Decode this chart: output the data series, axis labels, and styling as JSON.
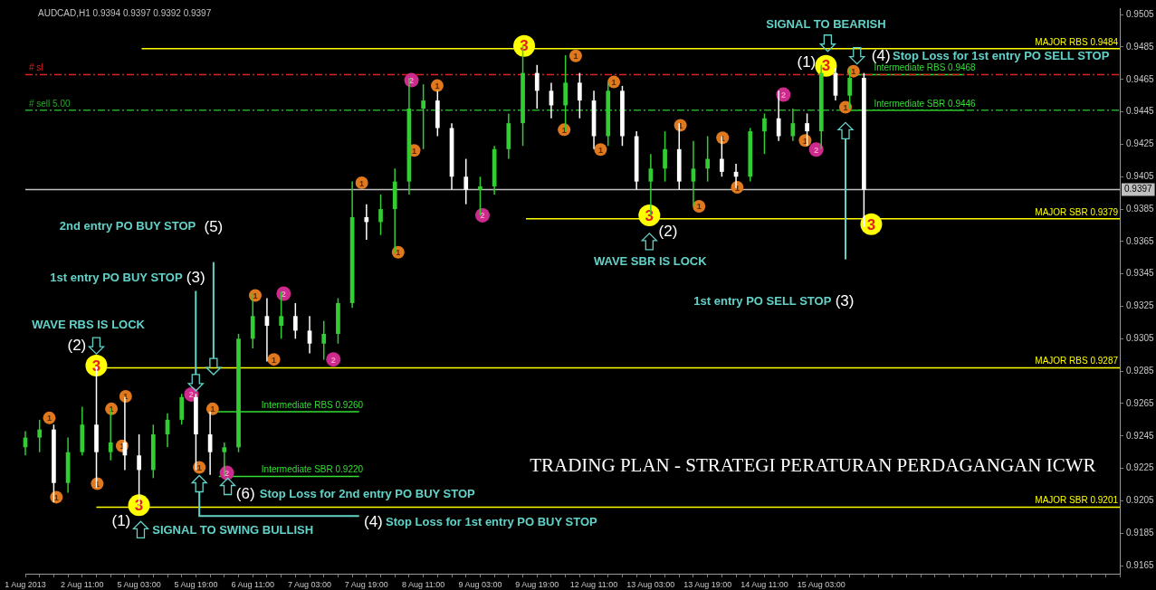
{
  "chart_data": {
    "type": "candlestick",
    "title": "AUDCAD,H1 0.9394 0.9397 0.9392 0.9397",
    "categories": [
      "1 Aug 2013",
      null,
      null,
      null,
      "2 Aug 11:00",
      null,
      null,
      null,
      "5 Aug 03:00",
      null,
      null,
      null,
      "5 Aug 19:00",
      null,
      null,
      null,
      "6 Aug 11:00",
      null,
      null,
      null,
      "7 Aug 03:00",
      null,
      null,
      null,
      "7 Aug 19:00",
      null,
      null,
      null,
      "8 Aug 11:00",
      null,
      null,
      null,
      "9 Aug 03:00",
      null,
      null,
      null,
      "9 Aug 19:00",
      null,
      null,
      null,
      "12 Aug 11:00",
      null,
      null,
      null,
      "13 Aug 03:00",
      null,
      null,
      null,
      "13 Aug 19:00",
      null,
      null,
      null,
      "14 Aug 11:00",
      null,
      null,
      null,
      "15 Aug 03:00",
      null,
      null,
      null,
      null,
      null,
      null,
      null,
      null,
      null,
      null,
      null,
      null,
      null,
      null,
      null,
      null,
      null,
      null,
      null,
      null,
      null
    ],
    "ohlc": [
      [
        0.9238,
        0.9248,
        0.9233,
        0.9244
      ],
      [
        0.9244,
        0.9255,
        0.9235,
        0.9249
      ],
      [
        0.9249,
        0.9252,
        0.9204,
        0.9216
      ],
      [
        0.9216,
        0.9244,
        0.921,
        0.9235
      ],
      [
        0.9235,
        0.9263,
        0.9233,
        0.9252
      ],
      [
        0.9252,
        0.9288,
        0.9213,
        0.9235
      ],
      [
        0.9235,
        0.9262,
        0.923,
        0.9241
      ],
      [
        0.9241,
        0.9269,
        0.9224,
        0.9233
      ],
      [
        0.9233,
        0.9246,
        0.9202,
        0.9224
      ],
      [
        0.9224,
        0.9252,
        0.9219,
        0.9246
      ],
      [
        0.9246,
        0.9259,
        0.9238,
        0.9255
      ],
      [
        0.9255,
        0.9271,
        0.9252,
        0.9269
      ],
      [
        0.9269,
        0.9271,
        0.9224,
        0.9246
      ],
      [
        0.9246,
        0.926,
        0.9221,
        0.9235
      ],
      [
        0.9235,
        0.9241,
        0.922,
        0.9238
      ],
      [
        0.9238,
        0.9308,
        0.9235,
        0.9305
      ],
      [
        0.9305,
        0.9333,
        0.9299,
        0.9319
      ],
      [
        0.9319,
        0.933,
        0.9291,
        0.9313
      ],
      [
        0.9313,
        0.9334,
        0.9305,
        0.9319
      ],
      [
        0.9319,
        0.9327,
        0.9305,
        0.931
      ],
      [
        0.931,
        0.9319,
        0.9296,
        0.9302
      ],
      [
        0.9302,
        0.9316,
        0.9292,
        0.9308
      ],
      [
        0.9308,
        0.933,
        0.9302,
        0.9327
      ],
      [
        0.9327,
        0.9402,
        0.9324,
        0.938
      ],
      [
        0.938,
        0.9388,
        0.9366,
        0.9377
      ],
      [
        0.9377,
        0.9394,
        0.9369,
        0.9385
      ],
      [
        0.9385,
        0.941,
        0.9358,
        0.9402
      ],
      [
        0.9402,
        0.9466,
        0.9394,
        0.9447
      ],
      [
        0.9447,
        0.9462,
        0.9422,
        0.9452
      ],
      [
        0.9452,
        0.9458,
        0.943,
        0.9435
      ],
      [
        0.9435,
        0.9438,
        0.9397,
        0.9405
      ],
      [
        0.9405,
        0.9416,
        0.9388,
        0.9397
      ],
      [
        0.9397,
        0.9405,
        0.9381,
        0.9399
      ],
      [
        0.9399,
        0.9424,
        0.9394,
        0.9422
      ],
      [
        0.9422,
        0.9444,
        0.9416,
        0.9438
      ],
      [
        0.9438,
        0.9486,
        0.9424,
        0.9469
      ],
      [
        0.9469,
        0.9474,
        0.9447,
        0.9458
      ],
      [
        0.9458,
        0.9463,
        0.9441,
        0.9449
      ],
      [
        0.9449,
        0.948,
        0.9433,
        0.9463
      ],
      [
        0.9463,
        0.9469,
        0.9441,
        0.9452
      ],
      [
        0.9452,
        0.9458,
        0.9422,
        0.943
      ],
      [
        0.943,
        0.9463,
        0.9424,
        0.9458
      ],
      [
        0.9458,
        0.9461,
        0.9424,
        0.943
      ],
      [
        0.943,
        0.9433,
        0.9397,
        0.9402
      ],
      [
        0.9402,
        0.9419,
        0.9381,
        0.941
      ],
      [
        0.941,
        0.9433,
        0.9402,
        0.9422
      ],
      [
        0.9422,
        0.9438,
        0.9397,
        0.9402
      ],
      [
        0.9402,
        0.9427,
        0.9387,
        0.941
      ],
      [
        0.941,
        0.943,
        0.9402,
        0.9416
      ],
      [
        0.9416,
        0.943,
        0.9405,
        0.9408
      ],
      [
        0.9408,
        0.9413,
        0.9398,
        0.9405
      ],
      [
        0.9405,
        0.9435,
        0.9402,
        0.9433
      ],
      [
        0.9433,
        0.9444,
        0.9419,
        0.9441
      ],
      [
        0.9441,
        0.9458,
        0.9427,
        0.943
      ],
      [
        0.943,
        0.9447,
        0.9427,
        0.9438
      ],
      [
        0.9438,
        0.9444,
        0.9424,
        0.9433
      ],
      [
        0.9433,
        0.9474,
        0.9422,
        0.9469
      ],
      [
        0.9469,
        0.9472,
        0.9452,
        0.9455
      ],
      [
        0.9455,
        0.9472,
        0.9447,
        0.9466
      ],
      [
        0.9466,
        0.9469,
        0.9374,
        0.9397
      ],
      null,
      null,
      null,
      null,
      null,
      null,
      null,
      null,
      null,
      null,
      null,
      null,
      null,
      null,
      null,
      null,
      null,
      null
    ],
    "colors": [
      "#32cd32",
      "#32cd32",
      "#ffffff",
      "#32cd32",
      "#32cd32",
      "#ffffff",
      "#32cd32",
      "#ffffff",
      "#ffffff",
      "#32cd32",
      "#32cd32",
      "#32cd32",
      "#ffffff",
      "#ffffff",
      "#32cd32",
      "#32cd32",
      "#32cd32",
      "#ffffff",
      "#32cd32",
      "#ffffff",
      "#ffffff",
      "#32cd32",
      "#32cd32",
      "#32cd32",
      "#ffffff",
      "#32cd32",
      "#32cd32",
      "#32cd32",
      "#32cd32",
      "#ffffff",
      "#ffffff",
      "#ffffff",
      "#32cd32",
      "#32cd32",
      "#32cd32",
      "#32cd32",
      "#ffffff",
      "#ffffff",
      "#32cd32",
      "#ffffff",
      "#ffffff",
      "#32cd32",
      "#ffffff",
      "#ffffff",
      "#32cd32",
      "#32cd32",
      "#ffffff",
      "#32cd32",
      "#32cd32",
      "#ffffff",
      "#ffffff",
      "#32cd32",
      "#32cd32",
      "#ffffff",
      "#32cd32",
      "#ffffff",
      "#32cd32",
      "#ffffff",
      "#32cd32",
      "#ffffff",
      null,
      null,
      null,
      null,
      null,
      null,
      null,
      null,
      null,
      null,
      null,
      null,
      null,
      null,
      null,
      null,
      null,
      null
    ],
    "ylim": [
      0.916,
      0.9509
    ],
    "yticks": [
      0.9165,
      0.9185,
      0.9205,
      0.9225,
      0.9245,
      0.9265,
      0.9285,
      0.9305,
      0.9325,
      0.9345,
      0.9365,
      0.9385,
      0.9405,
      0.9425,
      0.9445,
      0.9465,
      0.9485,
      0.9505
    ],
    "grid": false,
    "legend": false,
    "ref_lines": [
      {
        "axis": "y",
        "value": 0.9484,
        "label": "MAJOR RBS 0.9484",
        "color": "#ffff00",
        "line_style": "solid"
      },
      {
        "axis": "y",
        "value": 0.9379,
        "label": "MAJOR SBR 0.9379",
        "color": "#ffff00",
        "line_style": "solid"
      },
      {
        "axis": "y",
        "value": 0.9287,
        "label": "MAJOR RBS 0.9287",
        "color": "#ffff00",
        "line_style": "solid"
      },
      {
        "axis": "y",
        "value": 0.9201,
        "label": "MAJOR SBR 0.9201",
        "color": "#ffff00",
        "line_style": "solid"
      },
      {
        "axis": "y",
        "value": 0.9468,
        "label": "Intermediate RBS 0.9468",
        "color": "#33dd33",
        "line_style": "solid"
      },
      {
        "axis": "y",
        "value": 0.9446,
        "label": "Intermediate SBR 0.9446",
        "color": "#33dd33",
        "line_style": "solid"
      },
      {
        "axis": "y",
        "value": 0.926,
        "label": "Intermediate RBS 0.9260",
        "color": "#33dd33",
        "line_style": "solid"
      },
      {
        "axis": "y",
        "value": 0.922,
        "label": "Intermediate SBR 0.9220",
        "color": "#33dd33",
        "line_style": "solid"
      },
      {
        "axis": "y",
        "value": 0.9468,
        "label": "# sl",
        "color": "#dd2222",
        "line_style": "dashed"
      },
      {
        "axis": "y",
        "value": 0.9446,
        "label": "# sell 5.00",
        "color": "#22aa22",
        "line_style": "dashed"
      },
      {
        "axis": "y",
        "value": 0.9397,
        "label": "0.9397",
        "color": "#c0c0c0",
        "line_style": "solid"
      }
    ],
    "annotations": [
      "SIGNAL TO BEARISH",
      "(1)",
      "(4)",
      "Stop Loss for 1st entry PO SELL STOP",
      "(2)",
      "WAVE SBR IS LOCK",
      "1st entry PO SELL STOP",
      "(3)",
      "2nd entry PO BUY STOP",
      "(5)",
      "1st entry PO BUY STOP",
      "(3)",
      "WAVE RBS IS LOCK",
      "(2)",
      "(1)",
      "SIGNAL TO SWING BULLISH",
      "(6)",
      "Stop Loss for 2nd entry PO BUY STOP",
      "(4)",
      "Stop Loss for 1st entry PO BUY STOP",
      "TRADING PLAN - STRATEGI PERATURAN PERDAGANGAN ICWR",
      "1",
      "1",
      "3",
      "1",
      "1",
      "1",
      "1",
      "3",
      "2",
      "1",
      "1",
      "2",
      "1",
      "2",
      "1",
      "2",
      "1",
      "1",
      "2",
      "1",
      "1",
      "2",
      "3",
      "1",
      "1",
      "1",
      "1",
      "3",
      "1",
      "1",
      "1",
      "1",
      "2",
      "1",
      "2",
      "3",
      "1",
      "1",
      "3"
    ]
  }
}
